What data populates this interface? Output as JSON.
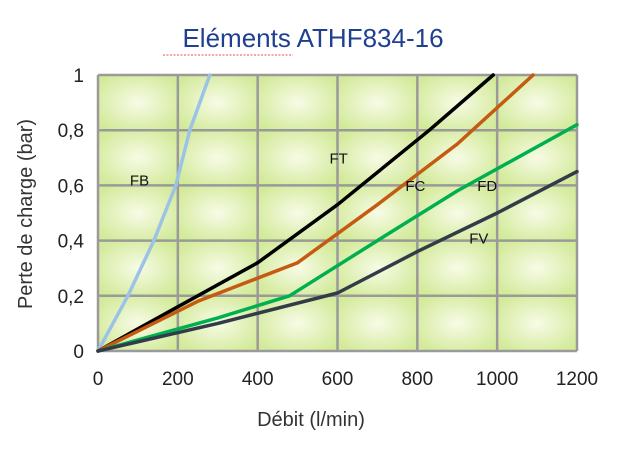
{
  "chart_data": {
    "type": "line",
    "title": "Eléments ATHF834-16",
    "xlabel": "Débit (l/min)",
    "ylabel": "Perte de charge (bar)",
    "xlim": [
      0,
      1200
    ],
    "ylim": [
      0,
      1
    ],
    "x_ticks": [
      0,
      200,
      400,
      600,
      800,
      1000,
      1200
    ],
    "y_ticks": [
      0,
      0.2,
      0.4,
      0.6,
      0.8,
      1
    ],
    "x_tick_labels": [
      "0",
      "200",
      "400",
      "600",
      "800",
      "1000",
      "1200"
    ],
    "y_tick_labels": [
      "0",
      "0,2",
      "0,4",
      "0,6",
      "0,8",
      "1"
    ],
    "grid": true,
    "legend": "inline labels",
    "series": [
      {
        "name": "FB",
        "color": "#9cc3e6",
        "points": [
          [
            0,
            0
          ],
          [
            75,
            0.2
          ],
          [
            140,
            0.4
          ],
          [
            195,
            0.6
          ],
          [
            230,
            0.8
          ],
          [
            280,
            1.0
          ]
        ]
      },
      {
        "name": "FT",
        "color": "#000000",
        "points": [
          [
            0,
            0
          ],
          [
            200,
            0.16
          ],
          [
            400,
            0.32
          ],
          [
            600,
            0.53
          ],
          [
            830,
            0.8
          ],
          [
            990,
            1.0
          ]
        ]
      },
      {
        "name": "FC",
        "color": "#c55a11",
        "points": [
          [
            0,
            0
          ],
          [
            250,
            0.18
          ],
          [
            500,
            0.32
          ],
          [
            700,
            0.53
          ],
          [
            900,
            0.75
          ],
          [
            1090,
            1.0
          ]
        ]
      },
      {
        "name": "FD",
        "color": "#00b050",
        "points": [
          [
            0,
            0
          ],
          [
            300,
            0.12
          ],
          [
            480,
            0.2
          ],
          [
            700,
            0.4
          ],
          [
            900,
            0.58
          ],
          [
            1200,
            0.82
          ]
        ]
      },
      {
        "name": "FV",
        "color": "#323c48",
        "points": [
          [
            0,
            0
          ],
          [
            300,
            0.1
          ],
          [
            600,
            0.21
          ],
          [
            800,
            0.36
          ],
          [
            1000,
            0.5
          ],
          [
            1200,
            0.65
          ]
        ]
      }
    ],
    "label_positions": [
      {
        "name": "FB",
        "x": 80,
        "y": 0.6
      },
      {
        "name": "FT",
        "x": 580,
        "y": 0.68
      },
      {
        "name": "FC",
        "x": 770,
        "y": 0.58
      },
      {
        "name": "FD",
        "x": 950,
        "y": 0.58
      },
      {
        "name": "FV",
        "x": 930,
        "y": 0.39
      }
    ]
  }
}
